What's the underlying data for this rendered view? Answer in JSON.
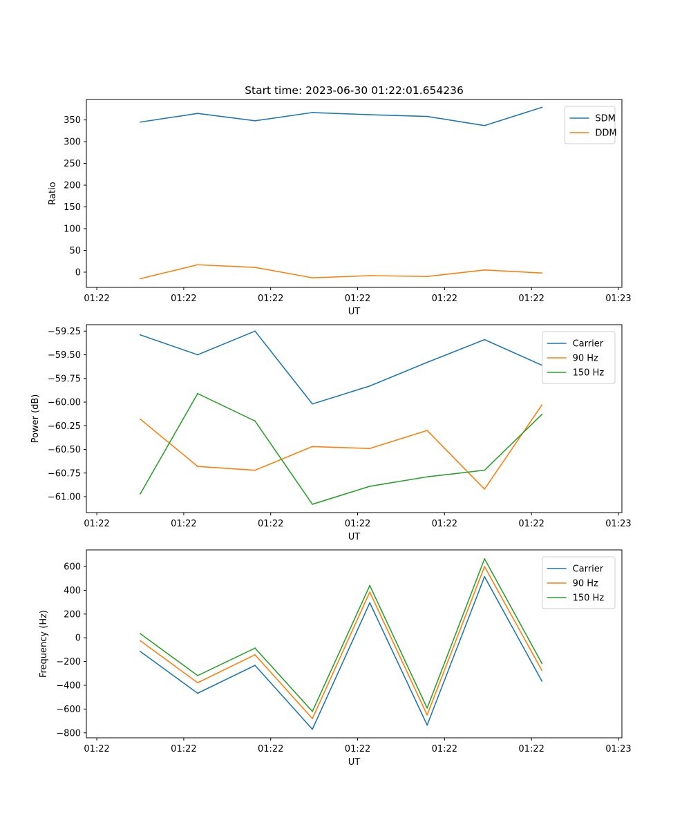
{
  "figure": {
    "title": "Start time: 2023-06-30 01:22:01.654236"
  },
  "colors": {
    "blue": "#1f77b4",
    "orange": "#ff7f0e",
    "green": "#2ca02c"
  },
  "chart_data": [
    {
      "type": "line",
      "xlabel": "UT",
      "ylabel": "Ratio",
      "x_tick_labels": [
        "01:22",
        "01:22",
        "01:22",
        "01:22",
        "01:22",
        "01:22",
        "01:23"
      ],
      "x_tick_positions": [
        0,
        5,
        10,
        15,
        20,
        25,
        30
      ],
      "xlim": [
        -0.6,
        30.2
      ],
      "ylim": [
        -35,
        397
      ],
      "y_ticks": [
        0,
        50,
        100,
        150,
        200,
        250,
        300,
        350
      ],
      "y_tick_labels": [
        "0",
        "50",
        "100",
        "150",
        "200",
        "250",
        "300",
        "350"
      ],
      "x": [
        2.5,
        5.8,
        9.1,
        12.4,
        15.7,
        19.0,
        22.3,
        25.6
      ],
      "series": [
        {
          "name": "SDM",
          "color": "#1f77b4",
          "values": [
            345,
            365,
            348,
            367,
            362,
            358,
            337,
            379
          ]
        },
        {
          "name": "DDM",
          "color": "#ff7f0e",
          "values": [
            -15,
            17,
            11,
            -13,
            -8,
            -10,
            5,
            -2
          ]
        }
      ],
      "legend": "upper right",
      "grid": false
    },
    {
      "type": "line",
      "xlabel": "UT",
      "ylabel": "Power (dB)",
      "x_tick_labels": [
        "01:22",
        "01:22",
        "01:22",
        "01:22",
        "01:22",
        "01:22",
        "01:23"
      ],
      "x_tick_positions": [
        0,
        5,
        10,
        15,
        20,
        25,
        30
      ],
      "xlim": [
        -0.6,
        30.2
      ],
      "ylim": [
        -61.168,
        -59.182
      ],
      "y_ticks": [
        -61.0,
        -60.75,
        -60.5,
        -60.25,
        -60.0,
        -59.75,
        -59.5,
        -59.25
      ],
      "y_tick_labels": [
        "−61.00",
        "−60.75",
        "−60.50",
        "−60.25",
        "−60.00",
        "−59.75",
        "−59.50",
        "−59.25"
      ],
      "x": [
        2.5,
        5.8,
        9.1,
        12.4,
        15.7,
        19.0,
        22.3,
        25.6
      ],
      "series": [
        {
          "name": "Carrier",
          "color": "#1f77b4",
          "values": [
            -59.29,
            -59.5,
            -59.25,
            -60.02,
            -59.83,
            -59.58,
            -59.34,
            -59.61
          ]
        },
        {
          "name": "90 Hz",
          "color": "#ff7f0e",
          "values": [
            -60.18,
            -60.68,
            -60.72,
            -60.47,
            -60.49,
            -60.3,
            -60.92,
            -60.03
          ]
        },
        {
          "name": "150 Hz",
          "color": "#2ca02c",
          "values": [
            -60.97,
            -59.91,
            -60.2,
            -61.08,
            -60.89,
            -60.79,
            -60.72,
            -60.13
          ]
        }
      ],
      "legend": "upper right",
      "grid": false
    },
    {
      "type": "line",
      "xlabel": "UT",
      "ylabel": "Frequency (Hz)",
      "x_tick_labels": [
        "01:22",
        "01:22",
        "01:22",
        "01:22",
        "01:22",
        "01:22",
        "01:23"
      ],
      "x_tick_positions": [
        0,
        5,
        10,
        15,
        20,
        25,
        30
      ],
      "xlim": [
        -0.6,
        30.2
      ],
      "ylim": [
        -842,
        740
      ],
      "y_ticks": [
        -800,
        -600,
        -400,
        -200,
        0,
        200,
        400,
        600
      ],
      "y_tick_labels": [
        "−800",
        "−600",
        "−400",
        "−200",
        "0",
        "200",
        "400",
        "600"
      ],
      "x": [
        2.5,
        5.8,
        9.1,
        12.4,
        15.7,
        19.0,
        22.3,
        25.6
      ],
      "series": [
        {
          "name": "Carrier",
          "color": "#1f77b4",
          "values": [
            -115,
            -467,
            -232,
            -770,
            295,
            -735,
            515,
            -365
          ]
        },
        {
          "name": "90 Hz",
          "color": "#ff7f0e",
          "values": [
            -25,
            -378,
            -143,
            -680,
            385,
            -650,
            600,
            -275
          ]
        },
        {
          "name": "150 Hz",
          "color": "#2ca02c",
          "values": [
            35,
            -318,
            -87,
            -620,
            440,
            -592,
            665,
            -215
          ]
        }
      ],
      "legend": "upper right",
      "grid": false
    }
  ]
}
